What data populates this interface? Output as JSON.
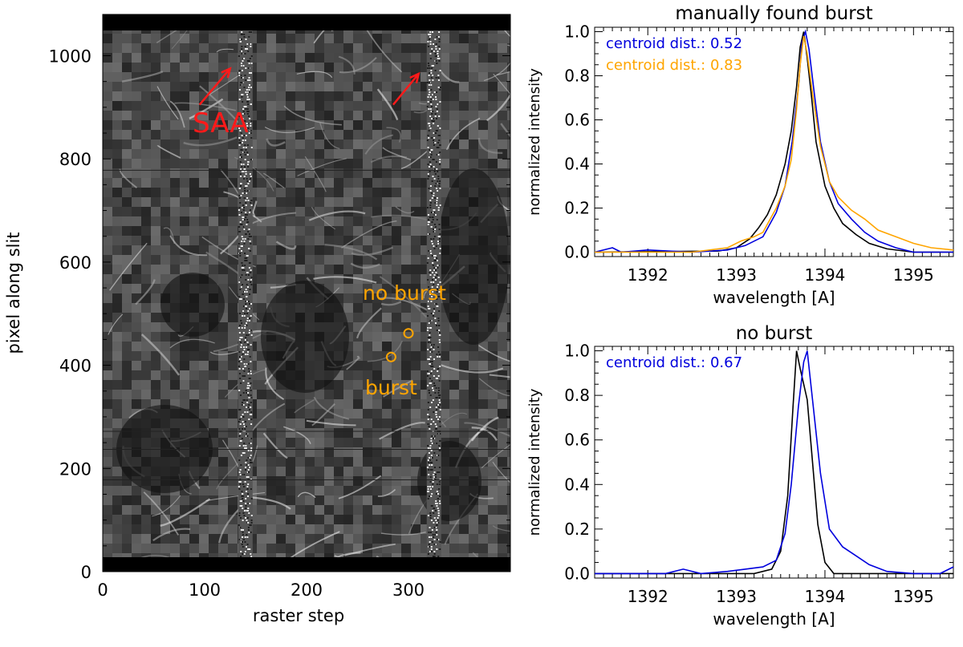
{
  "chart_data": [
    {
      "type": "heatmap",
      "xlabel": "raster step",
      "ylabel": "pixel along slit",
      "xlim": [
        0,
        400
      ],
      "ylim": [
        0,
        1080
      ],
      "xticks": [
        "0",
        "100",
        "200",
        "300"
      ],
      "yticks": [
        "0",
        "200",
        "400",
        "600",
        "800",
        "1000"
      ],
      "noise_columns": [
        140,
        325
      ],
      "annotations": [
        {
          "text": "SAA",
          "color": "#ff1a1a",
          "x": 100,
          "y": 875
        },
        {
          "text": "no burst",
          "color": "#ffa500",
          "x": 300,
          "y": 465
        },
        {
          "text": "burst",
          "color": "#ffa500",
          "x": 283,
          "y": 413
        }
      ],
      "arrows": [
        {
          "from": [
            95,
            905
          ],
          "to": [
            125,
            975
          ],
          "color": "#ff1a1a"
        },
        {
          "from": [
            285,
            905
          ],
          "to": [
            310,
            965
          ],
          "color": "#ff1a1a"
        }
      ],
      "markers": [
        {
          "name": "no burst",
          "x": 300,
          "y": 462,
          "color": "#ffa500"
        },
        {
          "name": "burst",
          "x": 283,
          "y": 416,
          "color": "#ffa500"
        }
      ]
    },
    {
      "type": "line",
      "title": "manually found burst",
      "xlabel": "wavelength [A]",
      "ylabel": "normalized intensity",
      "xlim": [
        1391.4,
        1395.45
      ],
      "ylim": [
        -0.02,
        1.02
      ],
      "xticks": [
        "1392",
        "1393",
        "1394",
        "1395"
      ],
      "yticks": [
        "0.0",
        "0.2",
        "0.4",
        "0.6",
        "0.8",
        "1.0"
      ],
      "legend": [
        {
          "text": "centroid dist.: 0.52",
          "color": "#0000dd"
        },
        {
          "text": "centroid dist.: 0.83",
          "color": "#ffa500"
        }
      ],
      "series": [
        {
          "color": "#000000",
          "x": [
            1391.4,
            1392.8,
            1393.0,
            1393.15,
            1393.25,
            1393.35,
            1393.45,
            1393.55,
            1393.62,
            1393.68,
            1393.72,
            1393.76,
            1393.8,
            1393.85,
            1393.9,
            1394.0,
            1394.1,
            1394.2,
            1394.35,
            1394.5,
            1394.7,
            1395.0,
            1395.45
          ],
          "y": [
            0.0,
            0.005,
            0.02,
            0.06,
            0.11,
            0.17,
            0.26,
            0.4,
            0.55,
            0.75,
            0.93,
            1.0,
            0.88,
            0.7,
            0.5,
            0.3,
            0.2,
            0.13,
            0.08,
            0.04,
            0.015,
            0.0,
            0.0
          ]
        },
        {
          "color": "#0000dd",
          "x": [
            1391.4,
            1391.6,
            1391.7,
            1392.0,
            1392.5,
            1392.9,
            1393.1,
            1393.3,
            1393.45,
            1393.55,
            1393.63,
            1393.7,
            1393.74,
            1393.78,
            1393.82,
            1393.88,
            1393.95,
            1394.05,
            1394.15,
            1394.3,
            1394.45,
            1394.6,
            1394.8,
            1395.0,
            1395.45
          ],
          "y": [
            0.0,
            0.02,
            0.0,
            0.01,
            0.0,
            0.01,
            0.03,
            0.07,
            0.18,
            0.3,
            0.5,
            0.75,
            0.95,
            1.0,
            0.92,
            0.72,
            0.5,
            0.32,
            0.22,
            0.15,
            0.09,
            0.05,
            0.02,
            0.0,
            0.0
          ]
        },
        {
          "color": "#ffa500",
          "x": [
            1391.4,
            1392.5,
            1392.9,
            1393.05,
            1393.2,
            1393.3,
            1393.45,
            1393.55,
            1393.62,
            1393.68,
            1393.72,
            1393.76,
            1393.8,
            1393.86,
            1393.95,
            1394.05,
            1394.15,
            1394.3,
            1394.45,
            1394.6,
            1394.8,
            1395.0,
            1395.2,
            1395.45
          ],
          "y": [
            0.0,
            0.0,
            0.02,
            0.05,
            0.07,
            0.09,
            0.2,
            0.3,
            0.42,
            0.65,
            0.85,
            0.98,
            0.9,
            0.72,
            0.48,
            0.32,
            0.25,
            0.19,
            0.15,
            0.1,
            0.07,
            0.04,
            0.02,
            0.01
          ]
        }
      ]
    },
    {
      "type": "line",
      "title": "no burst",
      "xlabel": "wavelength [A]",
      "ylabel": "normalized intensity",
      "xlim": [
        1391.4,
        1395.45
      ],
      "ylim": [
        -0.02,
        1.02
      ],
      "xticks": [
        "1392",
        "1393",
        "1394",
        "1395"
      ],
      "yticks": [
        "0.0",
        "0.2",
        "0.4",
        "0.6",
        "0.8",
        "1.0"
      ],
      "legend": [
        {
          "text": "centroid dist.: 0.67",
          "color": "#0000dd"
        }
      ],
      "series": [
        {
          "color": "#000000",
          "x": [
            1391.4,
            1393.2,
            1393.4,
            1393.5,
            1393.58,
            1393.64,
            1393.68,
            1393.72,
            1393.76,
            1393.8,
            1393.86,
            1393.92,
            1394.0,
            1394.1,
            1395.45
          ],
          "y": [
            0.0,
            0.0,
            0.02,
            0.1,
            0.35,
            0.75,
            1.0,
            0.92,
            0.85,
            0.78,
            0.5,
            0.22,
            0.05,
            0.0,
            0.0
          ]
        },
        {
          "color": "#0000dd",
          "x": [
            1391.4,
            1392.2,
            1392.4,
            1392.6,
            1392.9,
            1393.1,
            1393.3,
            1393.45,
            1393.55,
            1393.62,
            1393.7,
            1393.76,
            1393.8,
            1393.86,
            1393.95,
            1394.05,
            1394.2,
            1394.35,
            1394.5,
            1394.7,
            1395.0,
            1395.3,
            1395.45
          ],
          "y": [
            0.0,
            0.0,
            0.02,
            0.0,
            0.01,
            0.02,
            0.03,
            0.06,
            0.18,
            0.4,
            0.75,
            0.95,
            1.0,
            0.78,
            0.45,
            0.2,
            0.12,
            0.08,
            0.04,
            0.01,
            0.0,
            0.0,
            0.03
          ]
        }
      ]
    }
  ]
}
